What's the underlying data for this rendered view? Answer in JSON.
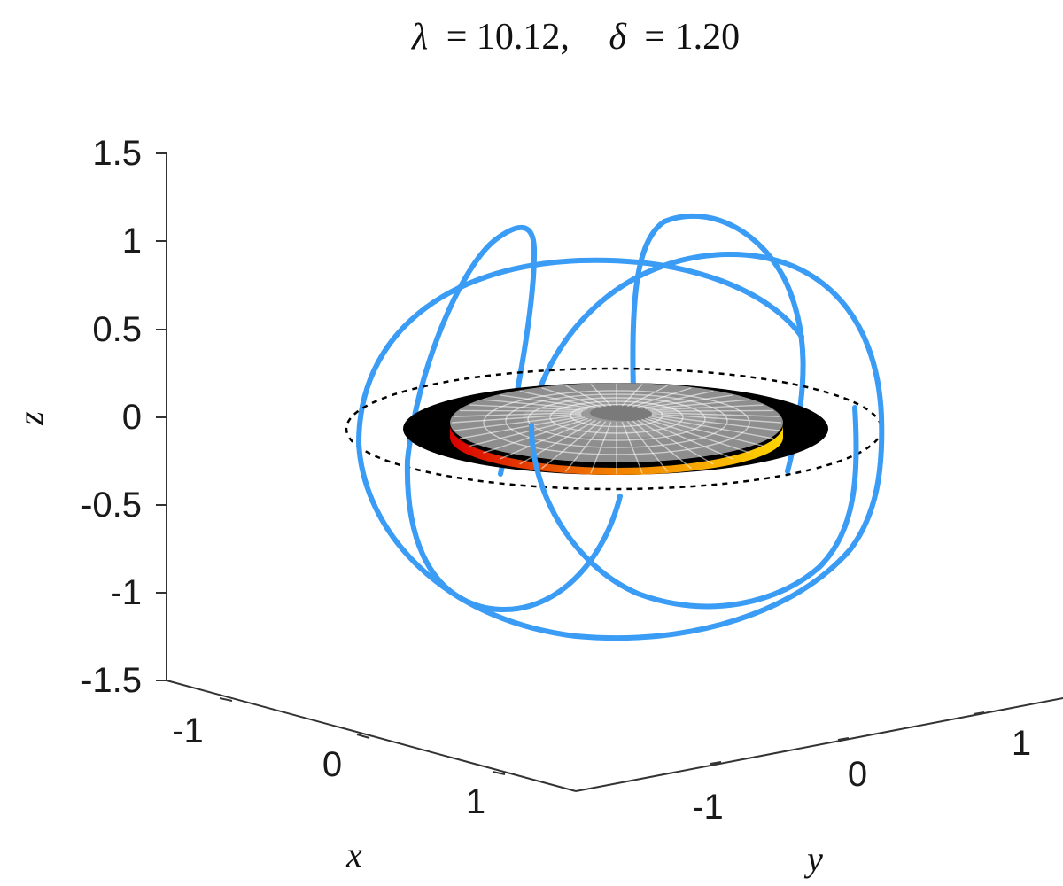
{
  "chart_data": {
    "type": "line",
    "title": {
      "lambda_symbol": "λ",
      "lambda_value": "= 10.12,",
      "delta_symbol": "δ",
      "delta_value": "= 1.20"
    },
    "xlabel": "x",
    "ylabel": "y",
    "zlabel": "z",
    "xlim": [
      -1.5,
      1.5
    ],
    "ylim": [
      -1.5,
      1.5
    ],
    "zlim": [
      -1.5,
      1.5
    ],
    "x_ticks": [
      "-1",
      "0",
      "1"
    ],
    "y_ticks": [
      "-1",
      "0",
      "1"
    ],
    "z_ticks": [
      "1.5",
      "1",
      "0.5",
      "0",
      "-0.5",
      "-1",
      "-1.5"
    ],
    "grid": false,
    "series": [
      {
        "kind": "trajectory",
        "color": "#3b9cf5"
      },
      {
        "kind": "unit-circle",
        "style": "dashed",
        "color": "#000000"
      },
      {
        "kind": "disk",
        "color": "#000000"
      },
      {
        "kind": "surface",
        "colormap": "hot"
      }
    ]
  }
}
